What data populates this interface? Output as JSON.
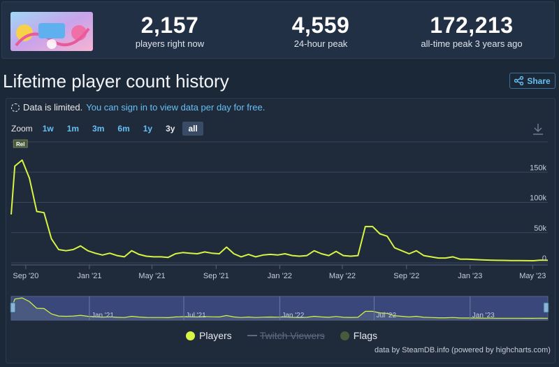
{
  "stats": [
    {
      "value": "2,157",
      "label": "players right now"
    },
    {
      "value": "4,559",
      "label": "24-hour peak"
    },
    {
      "value": "172,213",
      "label": "all-time peak 3 years ago"
    }
  ],
  "title": "Lifetime player count history",
  "share_label": "Share",
  "notice": {
    "text": "Data is limited.",
    "link": "You can sign in to view data per day for free."
  },
  "zoom": {
    "label": "Zoom",
    "options": [
      "1w",
      "1m",
      "3m",
      "6m",
      "1y",
      "3y",
      "all"
    ],
    "active": "all"
  },
  "legend": [
    "Players",
    "Twitch Viewers",
    "Flags"
  ],
  "credits": "data by SteamDB.info (powered by highcharts.com)",
  "colors": {
    "series": "#d7f542",
    "accent": "#66c0f4",
    "flags": "#4a5a3c"
  },
  "chart_data": {
    "type": "line",
    "series": [
      {
        "name": "Players",
        "x": [
          "2020-08-04",
          "2020-08-11",
          "2020-08-25",
          "2020-09-08",
          "2020-09-22",
          "2020-10-06",
          "2020-10-20",
          "2020-11-03",
          "2020-11-17",
          "2020-12-01",
          "2020-12-15",
          "2020-12-29",
          "2021-01-12",
          "2021-01-26",
          "2021-02-09",
          "2021-02-23",
          "2021-03-09",
          "2021-03-23",
          "2021-04-06",
          "2021-04-20",
          "2021-05-04",
          "2021-05-18",
          "2021-06-01",
          "2021-06-15",
          "2021-06-29",
          "2021-07-13",
          "2021-07-27",
          "2021-08-10",
          "2021-08-24",
          "2021-09-07",
          "2021-09-21",
          "2021-10-05",
          "2021-10-19",
          "2021-11-02",
          "2021-11-16",
          "2021-11-30",
          "2021-12-14",
          "2021-12-28",
          "2022-01-11",
          "2022-01-25",
          "2022-02-08",
          "2022-02-22",
          "2022-03-08",
          "2022-03-22",
          "2022-04-05",
          "2022-04-19",
          "2022-05-03",
          "2022-05-17",
          "2022-05-31",
          "2022-06-14",
          "2022-06-28",
          "2022-07-12",
          "2022-07-26",
          "2022-08-09",
          "2022-08-23",
          "2022-09-06",
          "2022-09-20",
          "2022-10-04",
          "2022-10-18",
          "2022-11-01",
          "2022-11-15",
          "2022-11-29",
          "2022-12-13",
          "2022-12-27",
          "2023-01-10",
          "2023-01-24",
          "2023-02-07",
          "2023-02-21",
          "2023-03-07",
          "2023-03-21",
          "2023-04-04",
          "2023-04-18",
          "2023-05-02",
          "2023-05-16",
          "2023-05-30"
        ],
        "values": [
          80000,
          160000,
          170000,
          140000,
          85000,
          83000,
          40000,
          22000,
          20000,
          22000,
          28000,
          20000,
          16000,
          13000,
          16000,
          12000,
          10000,
          20000,
          14000,
          11000,
          10000,
          10000,
          9000,
          15000,
          17000,
          16000,
          15000,
          18000,
          16000,
          15000,
          26000,
          15000,
          10000,
          14000,
          10000,
          13000,
          14000,
          13000,
          15000,
          12000,
          11000,
          12000,
          20000,
          15000,
          12000,
          19000,
          12000,
          11000,
          12000,
          60000,
          60000,
          48000,
          44000,
          25000,
          20000,
          15000,
          20000,
          12000,
          10000,
          8000,
          8000,
          10000,
          6000,
          6000,
          5500,
          5000,
          4500,
          4200,
          4000,
          3800,
          3700,
          3600,
          3500,
          4500,
          4200
        ]
      }
    ],
    "flags": [
      {
        "x": "2020-08-11",
        "label": "Rel"
      }
    ],
    "x_ticks": [
      "Sep '20",
      "Jan '21",
      "May '21",
      "Sep '21",
      "Jan '22",
      "May '22",
      "Sep '22",
      "Jan '23",
      "May '23"
    ],
    "navigator_ticks": [
      "Jan '21",
      "Jul '21",
      "Jan '22",
      "Jul '22",
      "Jan '23"
    ],
    "y_ticks": [
      "0",
      "50k",
      "100k",
      "150k"
    ],
    "ylim": [
      0,
      200000
    ],
    "xlim": [
      "2020-08-04",
      "2023-05-30"
    ],
    "grid": true,
    "legend_position": "bottom-center"
  }
}
